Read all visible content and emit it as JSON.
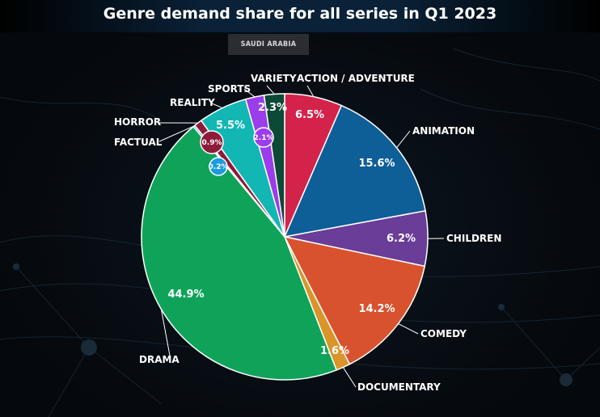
{
  "title": "Genre demand share for all series in Q1 2023",
  "region": "SAUDI ARABIA",
  "chart_data": {
    "type": "pie",
    "title": "Genre demand share for all series in Q1 2023",
    "subtitle": "SAUDI ARABIA",
    "slices": [
      {
        "label": "ACTION / ADVENTURE",
        "value": 6.5,
        "display": "6.5%",
        "color": "#d4234a"
      },
      {
        "label": "ANIMATION",
        "value": 15.6,
        "display": "15.6%",
        "color": "#0e5e98"
      },
      {
        "label": "CHILDREN",
        "value": 6.2,
        "display": "6.2%",
        "color": "#6a3d98"
      },
      {
        "label": "COMEDY",
        "value": 14.2,
        "display": "14.2%",
        "color": "#d9522e"
      },
      {
        "label": "DOCUMENTARY",
        "value": 1.6,
        "display": "1.6%",
        "color": "#d9952a"
      },
      {
        "label": "DRAMA",
        "value": 44.9,
        "display": "44.9%",
        "color": "#0fa35a"
      },
      {
        "label": "FACTUAL",
        "value": 0.2,
        "display": "0.2%",
        "color": "#1e9be0"
      },
      {
        "label": "HORROR",
        "value": 0.9,
        "display": "0.9%",
        "color": "#8e1b3a"
      },
      {
        "label": "REALITY",
        "value": 5.5,
        "display": "5.5%",
        "color": "#12b7b4"
      },
      {
        "label": "SPORTS",
        "value": 2.1,
        "display": "2.1%",
        "color": "#9b3dea"
      },
      {
        "label": "VARIETY",
        "value": 2.3,
        "display": "2.3%",
        "color": "#0c4a36"
      }
    ]
  }
}
